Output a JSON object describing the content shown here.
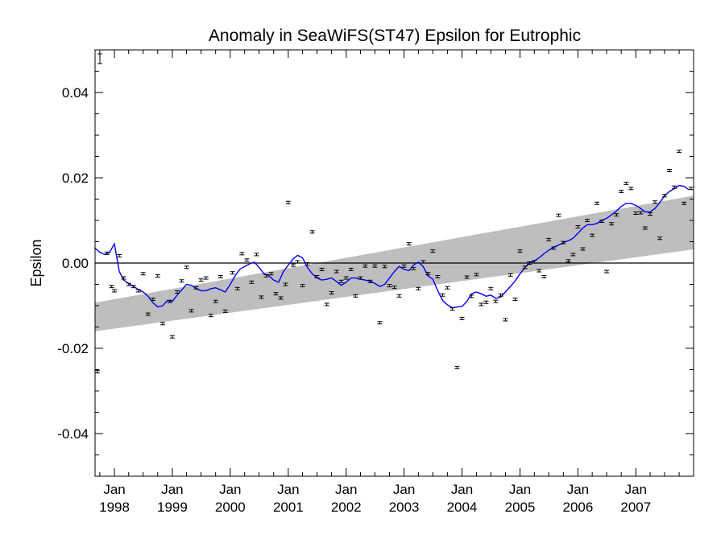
{
  "chart_data": {
    "type": "scatter",
    "title": "Anomaly in SeaWiFS(ST47) Epsilon for Eutrophic",
    "xlabel": "",
    "ylabel": "Epsilon",
    "ylim": [
      -0.05,
      0.05
    ],
    "xlim": [
      "1997-09-01",
      "2007-12-31"
    ],
    "yticks": [
      {
        "value": 0.04,
        "label": "0.04"
      },
      {
        "value": 0.02,
        "label": "0.02"
      },
      {
        "value": 0.0,
        "label": "0.00"
      },
      {
        "value": -0.02,
        "label": "-0.02"
      },
      {
        "value": -0.04,
        "label": "-0.04"
      }
    ],
    "xticks": [
      {
        "date": "1998-01-01",
        "month": "Jan",
        "year": "1998"
      },
      {
        "date": "1999-01-01",
        "month": "Jan",
        "year": "1999"
      },
      {
        "date": "2000-01-01",
        "month": "Jan",
        "year": "2000"
      },
      {
        "date": "2001-01-01",
        "month": "Jan",
        "year": "2001"
      },
      {
        "date": "2002-01-01",
        "month": "Jan",
        "year": "2002"
      },
      {
        "date": "2003-01-01",
        "month": "Jan",
        "year": "2003"
      },
      {
        "date": "2004-01-01",
        "month": "Jan",
        "year": "2004"
      },
      {
        "date": "2005-01-01",
        "month": "Jan",
        "year": "2005"
      },
      {
        "date": "2006-01-01",
        "month": "Jan",
        "year": "2006"
      },
      {
        "date": "2007-01-01",
        "month": "Jan",
        "year": "2007"
      }
    ],
    "colors": {
      "line": "#0000ff",
      "band": "#bebebe",
      "points": "#000000",
      "zero_line": "#000000"
    },
    "trend_band": {
      "start": {
        "date": "1997-09-01",
        "lower": -0.016,
        "upper": -0.0093
      },
      "end": {
        "date": "2007-12-31",
        "lower": 0.0032,
        "upper": 0.0158
      }
    },
    "points": [
      {
        "date": "1997-09-15",
        "y": -0.0255
      },
      {
        "date": "1997-11-15",
        "y": 0.0023
      },
      {
        "date": "1997-12-15",
        "y": -0.0055
      },
      {
        "date": "1998-01-01",
        "y": -0.0065
      },
      {
        "date": "1998-02-01",
        "y": 0.0017
      },
      {
        "date": "1998-03-01",
        "y": -0.0035
      },
      {
        "date": "1998-04-01",
        "y": -0.005
      },
      {
        "date": "1998-05-01",
        "y": -0.0055
      },
      {
        "date": "1998-06-01",
        "y": -0.0065
      },
      {
        "date": "1998-07-01",
        "y": -0.0025
      },
      {
        "date": "1998-08-01",
        "y": -0.012
      },
      {
        "date": "1998-09-01",
        "y": -0.0085
      },
      {
        "date": "1998-10-01",
        "y": -0.003
      },
      {
        "date": "1998-11-01",
        "y": -0.0142
      },
      {
        "date": "1998-12-15",
        "y": -0.009
      },
      {
        "date": "1999-01-01",
        "y": -0.0173
      },
      {
        "date": "1999-02-01",
        "y": -0.0068
      },
      {
        "date": "1999-03-01",
        "y": -0.0042
      },
      {
        "date": "1999-04-01",
        "y": -0.001
      },
      {
        "date": "1999-05-01",
        "y": -0.0112
      },
      {
        "date": "1999-06-01",
        "y": -0.0058
      },
      {
        "date": "1999-07-01",
        "y": -0.004
      },
      {
        "date": "1999-08-01",
        "y": -0.0035
      },
      {
        "date": "1999-09-01",
        "y": -0.0123
      },
      {
        "date": "1999-10-01",
        "y": -0.009
      },
      {
        "date": "1999-11-01",
        "y": -0.0032
      },
      {
        "date": "1999-12-01",
        "y": -0.0113
      },
      {
        "date": "2000-01-15",
        "y": -0.0023
      },
      {
        "date": "2000-02-15",
        "y": -0.006
      },
      {
        "date": "2000-03-15",
        "y": 0.0022
      },
      {
        "date": "2000-04-15",
        "y": 0.0007
      },
      {
        "date": "2000-05-15",
        "y": -0.0045
      },
      {
        "date": "2000-06-15",
        "y": 0.002
      },
      {
        "date": "2000-07-15",
        "y": -0.008
      },
      {
        "date": "2000-08-15",
        "y": -0.003
      },
      {
        "date": "2000-09-15",
        "y": -0.0025
      },
      {
        "date": "2000-10-15",
        "y": -0.0072
      },
      {
        "date": "2000-11-15",
        "y": -0.0082
      },
      {
        "date": "2000-12-15",
        "y": -0.005
      },
      {
        "date": "2001-01-01",
        "y": 0.0142
      },
      {
        "date": "2001-02-01",
        "y": -0.0005
      },
      {
        "date": "2001-03-01",
        "y": 0.0003
      },
      {
        "date": "2001-04-01",
        "y": -0.0053
      },
      {
        "date": "2001-05-01",
        "y": -0.0002
      },
      {
        "date": "2001-06-01",
        "y": 0.0073
      },
      {
        "date": "2001-07-01",
        "y": -0.0032
      },
      {
        "date": "2001-08-01",
        "y": -0.0015
      },
      {
        "date": "2001-09-01",
        "y": -0.0097
      },
      {
        "date": "2001-10-01",
        "y": -0.007
      },
      {
        "date": "2001-11-01",
        "y": -0.002
      },
      {
        "date": "2001-12-01",
        "y": -0.0043
      },
      {
        "date": "2002-01-01",
        "y": -0.0035
      },
      {
        "date": "2002-02-01",
        "y": -0.0015
      },
      {
        "date": "2002-03-01",
        "y": -0.0077
      },
      {
        "date": "2002-04-01",
        "y": -0.0035
      },
      {
        "date": "2002-05-01",
        "y": -0.0007
      },
      {
        "date": "2002-06-01",
        "y": -0.0043
      },
      {
        "date": "2002-07-01",
        "y": -0.0007
      },
      {
        "date": "2002-08-01",
        "y": -0.014
      },
      {
        "date": "2002-09-01",
        "y": -0.0008
      },
      {
        "date": "2002-10-01",
        "y": -0.0053
      },
      {
        "date": "2002-11-01",
        "y": -0.0057
      },
      {
        "date": "2002-12-01",
        "y": -0.0077
      },
      {
        "date": "2003-01-01",
        "y": -0.0007
      },
      {
        "date": "2003-02-01",
        "y": 0.0045
      },
      {
        "date": "2003-03-01",
        "y": -0.0013
      },
      {
        "date": "2003-04-01",
        "y": -0.006
      },
      {
        "date": "2003-05-01",
        "y": 0.0003
      },
      {
        "date": "2003-06-01",
        "y": -0.0025
      },
      {
        "date": "2003-07-01",
        "y": 0.0028
      },
      {
        "date": "2003-08-01",
        "y": -0.0032
      },
      {
        "date": "2003-09-01",
        "y": -0.0075
      },
      {
        "date": "2003-10-01",
        "y": -0.0058
      },
      {
        "date": "2003-11-01",
        "y": -0.0108
      },
      {
        "date": "2003-12-01",
        "y": -0.0245
      },
      {
        "date": "2004-01-01",
        "y": -0.013
      },
      {
        "date": "2004-02-01",
        "y": -0.0033
      },
      {
        "date": "2004-03-01",
        "y": -0.0078
      },
      {
        "date": "2004-04-01",
        "y": -0.0027
      },
      {
        "date": "2004-05-01",
        "y": -0.0097
      },
      {
        "date": "2004-06-01",
        "y": -0.0092
      },
      {
        "date": "2004-07-01",
        "y": -0.006
      },
      {
        "date": "2004-08-01",
        "y": -0.009
      },
      {
        "date": "2004-09-01",
        "y": -0.0075
      },
      {
        "date": "2004-10-01",
        "y": -0.0133
      },
      {
        "date": "2004-11-01",
        "y": -0.0028
      },
      {
        "date": "2004-12-01",
        "y": -0.0085
      },
      {
        "date": "2005-01-01",
        "y": 0.0028
      },
      {
        "date": "2005-02-01",
        "y": -0.001
      },
      {
        "date": "2005-03-01",
        "y": 0.0
      },
      {
        "date": "2005-04-01",
        "y": 0.0003
      },
      {
        "date": "2005-05-01",
        "y": -0.0018
      },
      {
        "date": "2005-06-01",
        "y": -0.0032
      },
      {
        "date": "2005-07-01",
        "y": 0.0055
      },
      {
        "date": "2005-08-01",
        "y": 0.0035
      },
      {
        "date": "2005-09-01",
        "y": 0.0112
      },
      {
        "date": "2005-10-01",
        "y": 0.0048
      },
      {
        "date": "2005-11-01",
        "y": 0.0005
      },
      {
        "date": "2005-12-01",
        "y": 0.002
      },
      {
        "date": "2006-01-01",
        "y": 0.0085
      },
      {
        "date": "2006-02-01",
        "y": 0.0033
      },
      {
        "date": "2006-03-01",
        "y": 0.01
      },
      {
        "date": "2006-04-01",
        "y": 0.0065
      },
      {
        "date": "2006-05-01",
        "y": 0.014
      },
      {
        "date": "2006-06-01",
        "y": 0.0098
      },
      {
        "date": "2006-07-01",
        "y": -0.002
      },
      {
        "date": "2006-08-01",
        "y": 0.0092
      },
      {
        "date": "2006-09-01",
        "y": 0.0113
      },
      {
        "date": "2006-10-01",
        "y": 0.0168
      },
      {
        "date": "2006-11-01",
        "y": 0.0187
      },
      {
        "date": "2006-12-01",
        "y": 0.0175
      },
      {
        "date": "2007-01-01",
        "y": 0.0117
      },
      {
        "date": "2007-02-01",
        "y": 0.0118
      },
      {
        "date": "2007-03-01",
        "y": 0.0082
      },
      {
        "date": "2007-04-01",
        "y": 0.0115
      },
      {
        "date": "2007-05-01",
        "y": 0.0143
      },
      {
        "date": "2007-06-01",
        "y": 0.0058
      },
      {
        "date": "2007-07-01",
        "y": 0.0158
      },
      {
        "date": "2007-08-01",
        "y": 0.0217
      },
      {
        "date": "2007-09-01",
        "y": 0.0178
      },
      {
        "date": "2007-10-01",
        "y": 0.0262
      },
      {
        "date": "2007-11-01",
        "y": 0.014
      },
      {
        "date": "2007-12-15",
        "y": 0.0175
      }
    ],
    "smoothed_line": [
      {
        "date": "1997-09-01",
        "y": 0.0035
      },
      {
        "date": "1997-10-01",
        "y": 0.0025
      },
      {
        "date": "1997-11-01",
        "y": 0.002
      },
      {
        "date": "1997-12-01",
        "y": 0.0025
      },
      {
        "date": "1998-01-01",
        "y": 0.0045
      },
      {
        "date": "1998-02-01",
        "y": -0.002
      },
      {
        "date": "1998-03-01",
        "y": -0.004
      },
      {
        "date": "1998-04-01",
        "y": -0.0048
      },
      {
        "date": "1998-05-01",
        "y": -0.0055
      },
      {
        "date": "1998-06-01",
        "y": -0.0062
      },
      {
        "date": "1998-07-01",
        "y": -0.0068
      },
      {
        "date": "1998-08-01",
        "y": -0.0078
      },
      {
        "date": "1998-09-01",
        "y": -0.0093
      },
      {
        "date": "1998-10-01",
        "y": -0.0103
      },
      {
        "date": "1998-11-01",
        "y": -0.01
      },
      {
        "date": "1998-12-01",
        "y": -0.0088
      },
      {
        "date": "1999-01-01",
        "y": -0.009
      },
      {
        "date": "1999-02-01",
        "y": -0.0075
      },
      {
        "date": "1999-03-01",
        "y": -0.0063
      },
      {
        "date": "1999-04-01",
        "y": -0.005
      },
      {
        "date": "1999-05-01",
        "y": -0.0052
      },
      {
        "date": "1999-06-01",
        "y": -0.006
      },
      {
        "date": "1999-07-01",
        "y": -0.0065
      },
      {
        "date": "1999-08-01",
        "y": -0.0065
      },
      {
        "date": "1999-09-01",
        "y": -0.006
      },
      {
        "date": "1999-10-01",
        "y": -0.0058
      },
      {
        "date": "1999-11-01",
        "y": -0.0063
      },
      {
        "date": "1999-12-01",
        "y": -0.0068
      },
      {
        "date": "2000-01-01",
        "y": -0.005
      },
      {
        "date": "2000-02-01",
        "y": -0.003
      },
      {
        "date": "2000-03-01",
        "y": -0.0015
      },
      {
        "date": "2000-04-01",
        "y": -0.0008
      },
      {
        "date": "2000-05-01",
        "y": -0.0002
      },
      {
        "date": "2000-06-01",
        "y": 0.0002
      },
      {
        "date": "2000-07-01",
        "y": -0.001
      },
      {
        "date": "2000-08-01",
        "y": -0.0025
      },
      {
        "date": "2000-09-01",
        "y": -0.003
      },
      {
        "date": "2000-10-01",
        "y": -0.004
      },
      {
        "date": "2000-11-01",
        "y": -0.0045
      },
      {
        "date": "2000-12-01",
        "y": -0.002
      },
      {
        "date": "2001-01-01",
        "y": -0.0005
      },
      {
        "date": "2001-02-01",
        "y": 0.001
      },
      {
        "date": "2001-03-01",
        "y": 0.0018
      },
      {
        "date": "2001-04-01",
        "y": 0.0012
      },
      {
        "date": "2001-05-01",
        "y": -0.001
      },
      {
        "date": "2001-06-01",
        "y": -0.0025
      },
      {
        "date": "2001-07-01",
        "y": -0.0035
      },
      {
        "date": "2001-08-01",
        "y": -0.004
      },
      {
        "date": "2001-09-01",
        "y": -0.0038
      },
      {
        "date": "2001-10-01",
        "y": -0.0035
      },
      {
        "date": "2001-11-01",
        "y": -0.0043
      },
      {
        "date": "2001-12-01",
        "y": -0.0052
      },
      {
        "date": "2002-01-01",
        "y": -0.0045
      },
      {
        "date": "2002-02-01",
        "y": -0.0035
      },
      {
        "date": "2002-03-01",
        "y": -0.0035
      },
      {
        "date": "2002-04-01",
        "y": -0.0038
      },
      {
        "date": "2002-05-01",
        "y": -0.004
      },
      {
        "date": "2002-06-01",
        "y": -0.0042
      },
      {
        "date": "2002-07-01",
        "y": -0.0048
      },
      {
        "date": "2002-08-01",
        "y": -0.0055
      },
      {
        "date": "2002-09-01",
        "y": -0.005
      },
      {
        "date": "2002-10-01",
        "y": -0.0035
      },
      {
        "date": "2002-11-01",
        "y": -0.002
      },
      {
        "date": "2002-12-01",
        "y": -0.0008
      },
      {
        "date": "2003-01-01",
        "y": -0.0015
      },
      {
        "date": "2003-02-01",
        "y": -0.0018
      },
      {
        "date": "2003-03-01",
        "y": -0.0005
      },
      {
        "date": "2003-04-01",
        "y": 0.0002
      },
      {
        "date": "2003-05-01",
        "y": -0.0008
      },
      {
        "date": "2003-06-01",
        "y": -0.003
      },
      {
        "date": "2003-07-01",
        "y": -0.0038
      },
      {
        "date": "2003-08-01",
        "y": -0.0065
      },
      {
        "date": "2003-09-01",
        "y": -0.0088
      },
      {
        "date": "2003-10-01",
        "y": -0.0098
      },
      {
        "date": "2003-11-01",
        "y": -0.0105
      },
      {
        "date": "2003-12-01",
        "y": -0.0103
      },
      {
        "date": "2004-01-01",
        "y": -0.0102
      },
      {
        "date": "2004-02-01",
        "y": -0.009
      },
      {
        "date": "2004-03-01",
        "y": -0.0072
      },
      {
        "date": "2004-04-01",
        "y": -0.0068
      },
      {
        "date": "2004-05-01",
        "y": -0.0072
      },
      {
        "date": "2004-06-01",
        "y": -0.0078
      },
      {
        "date": "2004-07-01",
        "y": -0.0075
      },
      {
        "date": "2004-08-01",
        "y": -0.0083
      },
      {
        "date": "2004-09-01",
        "y": -0.008
      },
      {
        "date": "2004-10-01",
        "y": -0.0068
      },
      {
        "date": "2004-11-01",
        "y": -0.0055
      },
      {
        "date": "2004-12-01",
        "y": -0.0042
      },
      {
        "date": "2005-01-01",
        "y": -0.0025
      },
      {
        "date": "2005-02-01",
        "y": -0.001
      },
      {
        "date": "2005-03-01",
        "y": 0.0
      },
      {
        "date": "2005-04-01",
        "y": 0.0005
      },
      {
        "date": "2005-05-01",
        "y": 0.0012
      },
      {
        "date": "2005-06-01",
        "y": 0.0022
      },
      {
        "date": "2005-07-01",
        "y": 0.003
      },
      {
        "date": "2005-08-01",
        "y": 0.0037
      },
      {
        "date": "2005-09-01",
        "y": 0.0042
      },
      {
        "date": "2005-10-01",
        "y": 0.0048
      },
      {
        "date": "2005-11-01",
        "y": 0.0052
      },
      {
        "date": "2005-12-01",
        "y": 0.0058
      },
      {
        "date": "2006-01-01",
        "y": 0.007
      },
      {
        "date": "2006-02-01",
        "y": 0.0082
      },
      {
        "date": "2006-03-01",
        "y": 0.009
      },
      {
        "date": "2006-04-01",
        "y": 0.009
      },
      {
        "date": "2006-05-01",
        "y": 0.0093
      },
      {
        "date": "2006-06-01",
        "y": 0.01
      },
      {
        "date": "2006-07-01",
        "y": 0.0105
      },
      {
        "date": "2006-08-01",
        "y": 0.0113
      },
      {
        "date": "2006-09-01",
        "y": 0.0122
      },
      {
        "date": "2006-10-01",
        "y": 0.0133
      },
      {
        "date": "2006-11-01",
        "y": 0.014
      },
      {
        "date": "2006-12-01",
        "y": 0.014
      },
      {
        "date": "2007-01-01",
        "y": 0.0135
      },
      {
        "date": "2007-02-01",
        "y": 0.0128
      },
      {
        "date": "2007-03-01",
        "y": 0.012
      },
      {
        "date": "2007-04-01",
        "y": 0.012
      },
      {
        "date": "2007-05-01",
        "y": 0.0128
      },
      {
        "date": "2007-06-01",
        "y": 0.0142
      },
      {
        "date": "2007-07-01",
        "y": 0.0158
      },
      {
        "date": "2007-08-01",
        "y": 0.0168
      },
      {
        "date": "2007-09-01",
        "y": 0.0175
      },
      {
        "date": "2007-10-01",
        "y": 0.0182
      },
      {
        "date": "2007-11-01",
        "y": 0.018
      },
      {
        "date": "2007-12-01",
        "y": 0.0172
      }
    ]
  }
}
